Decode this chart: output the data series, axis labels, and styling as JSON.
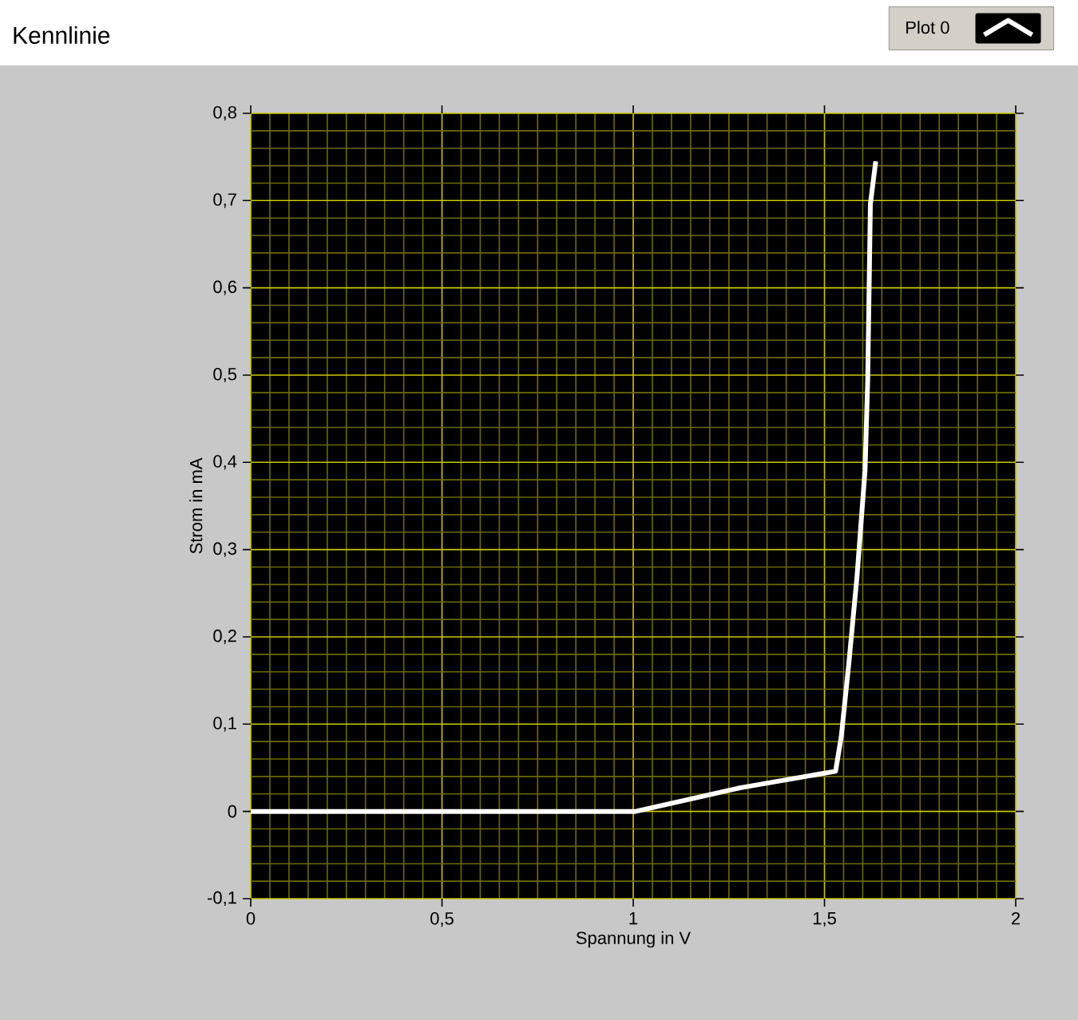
{
  "chart_data": {
    "type": "line",
    "title": "Kennlinie",
    "xlabel": "Spannung in V",
    "ylabel": "Strom in mA",
    "x": [
      0,
      0.5,
      1.006,
      1.279,
      1.529,
      1.544,
      1.564,
      1.585,
      1.606,
      1.613,
      1.62,
      1.634
    ],
    "series": [
      {
        "name": "Plot 0",
        "color": "#ffffff",
        "values": [
          0,
          0,
          0,
          0.027,
          0.046,
          0.086,
          0.171,
          0.269,
          0.391,
          0.494,
          0.696,
          0.745
        ]
      }
    ],
    "xlim": [
      0,
      2
    ],
    "ylim": [
      -0.1,
      0.8
    ],
    "xticks": [
      0,
      {
        "value": 0.05,
        "label": null
      },
      {
        "value": 0.1,
        "label": null
      },
      {
        "value": 0.15,
        "label": null
      },
      {
        "value": 0.2,
        "label": null
      },
      {
        "value": 0.25,
        "label": null
      },
      {
        "value": 0.3,
        "label": null
      },
      {
        "value": 0.35,
        "label": null
      },
      {
        "value": 0.4,
        "label": null
      },
      {
        "value": 0.45,
        "label": null
      },
      {
        "value": 0.5,
        "label": "0,5"
      },
      {
        "value": 0.55,
        "label": null
      },
      {
        "value": 0.6,
        "label": null
      },
      {
        "value": 0.65,
        "label": null
      },
      {
        "value": 0.7,
        "label": null
      },
      {
        "value": 0.75,
        "label": null
      },
      {
        "value": 0.8,
        "label": null
      },
      {
        "value": 0.85,
        "label": null
      },
      {
        "value": 0.9,
        "label": null
      },
      {
        "value": 0.95,
        "label": null
      },
      1,
      {
        "value": 1.05,
        "label": null
      },
      {
        "value": 1.1,
        "label": null
      },
      {
        "value": 1.15,
        "label": null
      },
      {
        "value": 1.2,
        "label": null
      },
      {
        "value": 1.25,
        "label": null
      },
      {
        "value": 1.3,
        "label": null
      },
      {
        "value": 1.35,
        "label": null
      },
      {
        "value": 1.4,
        "label": null
      },
      {
        "value": 1.45,
        "label": null
      },
      {
        "value": 1.5,
        "label": "1,5"
      },
      {
        "value": 1.55,
        "label": null
      },
      {
        "value": 1.6,
        "label": null
      },
      {
        "value": 1.65,
        "label": null
      },
      {
        "value": 1.7,
        "label": null
      },
      {
        "value": 1.75,
        "label": null
      },
      {
        "value": 1.8,
        "label": null
      },
      {
        "value": 1.85,
        "label": null
      },
      {
        "value": 1.9,
        "label": null
      },
      {
        "value": 1.95,
        "label": null
      },
      2
    ],
    "yticks": [
      {
        "value": -0.1,
        "label": "-0,1"
      },
      {
        "value": -0.08,
        "label": null
      },
      {
        "value": -0.06,
        "label": null
      },
      {
        "value": -0.04,
        "label": null
      },
      {
        "value": -0.02,
        "label": null
      },
      0,
      {
        "value": 0.02,
        "label": null
      },
      {
        "value": 0.04,
        "label": null
      },
      {
        "value": 0.06,
        "label": null
      },
      {
        "value": 0.08,
        "label": null
      },
      {
        "value": 0.1,
        "label": "0,1"
      },
      {
        "value": 0.12,
        "label": null
      },
      {
        "value": 0.14,
        "label": null
      },
      {
        "value": 0.16,
        "label": null
      },
      {
        "value": 0.18,
        "label": null
      },
      {
        "value": 0.2,
        "label": "0,2"
      },
      {
        "value": 0.22,
        "label": null
      },
      {
        "value": 0.24,
        "label": null
      },
      {
        "value": 0.26,
        "label": null
      },
      {
        "value": 0.28,
        "label": null
      },
      {
        "value": 0.3,
        "label": "0,3"
      },
      {
        "value": 0.32,
        "label": null
      },
      {
        "value": 0.34,
        "label": null
      },
      {
        "value": 0.36,
        "label": null
      },
      {
        "value": 0.38,
        "label": null
      },
      {
        "value": 0.4,
        "label": "0,4"
      },
      {
        "value": 0.42,
        "label": null
      },
      {
        "value": 0.44,
        "label": null
      },
      {
        "value": 0.46,
        "label": null
      },
      {
        "value": 0.48,
        "label": null
      },
      {
        "value": 0.5,
        "label": "0,5"
      },
      {
        "value": 0.52,
        "label": null
      },
      {
        "value": 0.54,
        "label": null
      },
      {
        "value": 0.56,
        "label": null
      },
      {
        "value": 0.58,
        "label": null
      },
      {
        "value": 0.6,
        "label": "0,6"
      },
      {
        "value": 0.62,
        "label": null
      },
      {
        "value": 0.64,
        "label": null
      },
      {
        "value": 0.66,
        "label": null
      },
      {
        "value": 0.68,
        "label": null
      },
      {
        "value": 0.7,
        "label": "0,7"
      },
      {
        "value": 0.72,
        "label": null
      },
      {
        "value": 0.74,
        "label": null
      },
      {
        "value": 0.76,
        "label": null
      },
      {
        "value": 0.78,
        "label": null
      },
      {
        "value": 0.8,
        "label": "0,8"
      }
    ],
    "grid": true,
    "legend": "top right",
    "marker": "none",
    "line_style": "solid"
  }
}
